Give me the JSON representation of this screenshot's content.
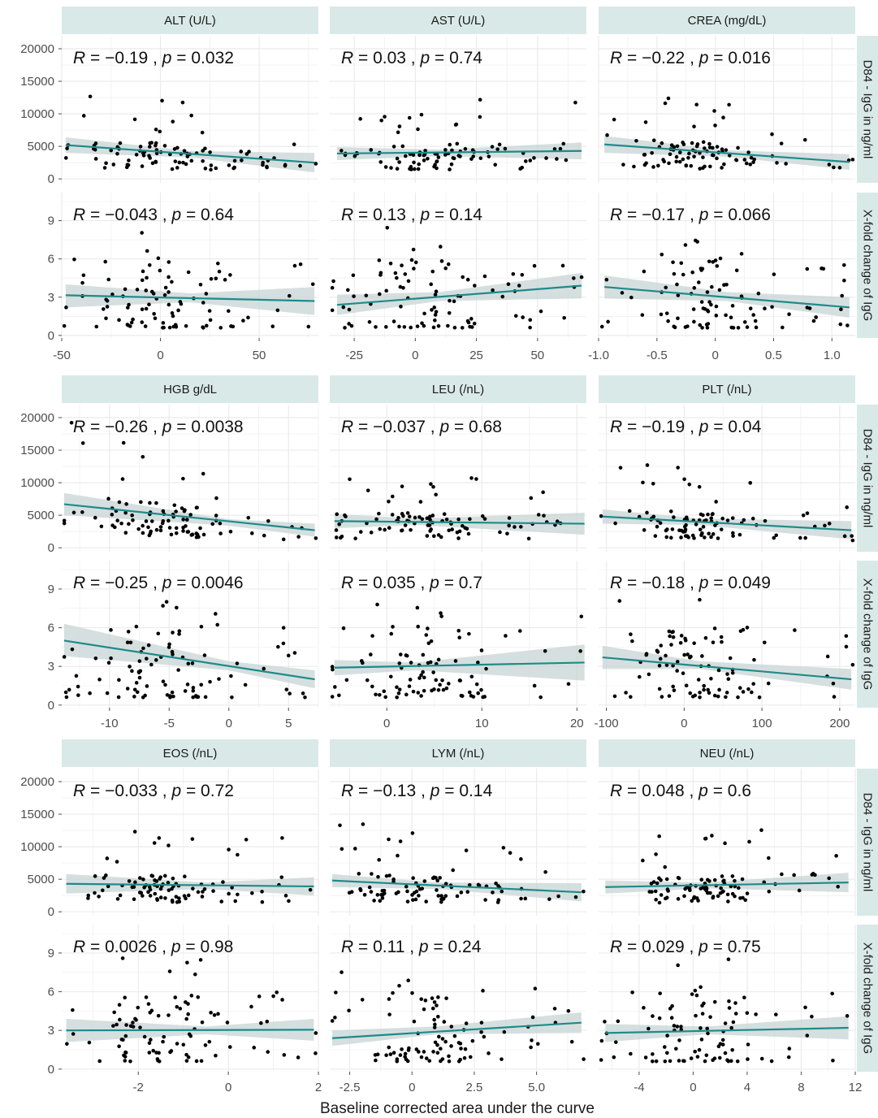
{
  "figure": {
    "x_axis_label": "Baseline corrected area under the curve",
    "row_strip_labels": [
      "D84 - IgG in ng/ml",
      "X-fold change of IgG"
    ],
    "colors": {
      "panel_bg": "#ffffff",
      "grid": "#ebebeb",
      "strip_bg": "#d9e9e8",
      "fit_line": "#1f8a8a",
      "confidence_band": "#c8d4d4",
      "point": "#000000"
    }
  },
  "chart_data": [
    {
      "type": "scatter",
      "title": "ALT (U/L)",
      "row": "D84 - IgG in ng/ml",
      "xlim": [
        -50,
        80
      ],
      "ylim": [
        -600,
        22000
      ],
      "x_ticks": [
        -50,
        0,
        50
      ],
      "y_ticks": [
        0,
        5000,
        10000,
        15000,
        20000
      ],
      "stat": {
        "R": "−0.19",
        "p": "0.032"
      },
      "fit": [
        [
          -48,
          5200
        ],
        [
          78,
          2500
        ]
      ],
      "band": [
        [
          -48,
          4000,
          6400
        ],
        [
          15,
          3300,
          4300
        ],
        [
          78,
          1000,
          4000
        ]
      ]
    },
    {
      "type": "scatter",
      "title": "AST (U/L)",
      "row": "D84 - IgG in ng/ml",
      "xlim": [
        -35,
        70
      ],
      "ylim": [
        -600,
        22000
      ],
      "x_ticks": [
        -25,
        0,
        25,
        50
      ],
      "y_ticks": [
        0,
        5000,
        10000,
        15000,
        20000
      ],
      "stat": {
        "R": "0.03",
        "p": "0.74"
      },
      "fit": [
        [
          -32,
          3900
        ],
        [
          68,
          4300
        ]
      ],
      "band": [
        [
          -32,
          2900,
          4900
        ],
        [
          10,
          3500,
          4500
        ],
        [
          68,
          3000,
          5600
        ]
      ]
    },
    {
      "type": "scatter",
      "title": "CREA (mg/dL)",
      "row": "D84 - IgG in ng/ml",
      "xlim": [
        -1.0,
        1.2
      ],
      "ylim": [
        -600,
        22000
      ],
      "x_ticks": [
        -1.0,
        -0.5,
        0.0,
        0.5,
        1.0
      ],
      "y_ticks": [
        0,
        5000,
        10000,
        15000,
        20000
      ],
      "stat": {
        "R": "−0.22",
        "p": "0.016"
      },
      "fit": [
        [
          -0.95,
          5300
        ],
        [
          1.15,
          2600
        ]
      ],
      "band": [
        [
          -0.95,
          4000,
          6600
        ],
        [
          0.1,
          3400,
          4400
        ],
        [
          1.15,
          1400,
          3800
        ]
      ]
    },
    {
      "type": "scatter",
      "title": "ALT (U/L)",
      "row": "X-fold change of IgG",
      "xlim": [
        -50,
        80
      ],
      "ylim": [
        -0.2,
        11.2
      ],
      "x_ticks": [
        -50,
        0,
        50
      ],
      "y_ticks": [
        0,
        3,
        6,
        9
      ],
      "x_tick_labels_shown": true,
      "stat": {
        "R": "−0.043",
        "p": "0.64"
      },
      "fit": [
        [
          -48,
          3.15
        ],
        [
          78,
          2.7
        ]
      ],
      "band": [
        [
          -48,
          2.2,
          4.0
        ],
        [
          15,
          2.6,
          3.3
        ],
        [
          78,
          1.6,
          3.8
        ]
      ]
    },
    {
      "type": "scatter",
      "title": "AST (U/L)",
      "row": "X-fold change of IgG",
      "xlim": [
        -35,
        70
      ],
      "ylim": [
        -0.2,
        11.2
      ],
      "x_ticks": [
        -25,
        0,
        25,
        50
      ],
      "y_ticks": [
        0,
        3,
        6,
        9
      ],
      "stat": {
        "R": "0.13",
        "p": "0.14"
      },
      "fit": [
        [
          -32,
          2.4
        ],
        [
          68,
          3.9
        ]
      ],
      "band": [
        [
          -32,
          1.6,
          3.2
        ],
        [
          10,
          2.7,
          3.4
        ],
        [
          68,
          2.9,
          4.9
        ]
      ]
    },
    {
      "type": "scatter",
      "title": "CREA (mg/dL)",
      "row": "X-fold change of IgG",
      "xlim": [
        -1.0,
        1.2
      ],
      "ylim": [
        -0.2,
        11.2
      ],
      "x_ticks": [
        -1.0,
        -0.5,
        0.0,
        0.5,
        1.0
      ],
      "y_ticks": [
        0,
        3,
        6,
        9
      ],
      "stat": {
        "R": "−0.17",
        "p": "0.066"
      },
      "fit": [
        [
          -0.95,
          3.8
        ],
        [
          1.15,
          2.2
        ]
      ],
      "band": [
        [
          -0.95,
          2.9,
          4.7
        ],
        [
          0.1,
          2.7,
          3.4
        ],
        [
          1.15,
          1.4,
          3.0
        ]
      ]
    },
    {
      "type": "scatter",
      "title": "HGB g/dL",
      "row": "D84 - IgG in ng/ml",
      "xlim": [
        -14,
        7.5
      ],
      "ylim": [
        -600,
        22000
      ],
      "x_ticks": [
        -10,
        -5,
        0,
        5
      ],
      "y_ticks": [
        0,
        5000,
        10000,
        15000,
        20000
      ],
      "stat": {
        "R": "−0.26",
        "p": "0.0038"
      },
      "fit": [
        [
          -13.8,
          6700
        ],
        [
          7.2,
          2700
        ]
      ],
      "band": [
        [
          -13.8,
          5000,
          8400
        ],
        [
          0,
          3400,
          4400
        ],
        [
          7.2,
          1700,
          3700
        ]
      ]
    },
    {
      "type": "scatter",
      "title": "LEU (/nL)",
      "row": "D84 - IgG in ng/ml",
      "xlim": [
        -6,
        21
      ],
      "ylim": [
        -600,
        22000
      ],
      "x_ticks": [
        0,
        10,
        20
      ],
      "y_ticks": [
        0,
        5000,
        10000,
        15000,
        20000
      ],
      "stat": {
        "R": "−0.037",
        "p": "0.68"
      },
      "fit": [
        [
          -5.5,
          4100
        ],
        [
          20.8,
          3700
        ]
      ],
      "band": [
        [
          -5.5,
          3000,
          5200
        ],
        [
          3,
          3500,
          4500
        ],
        [
          20.8,
          2000,
          5400
        ]
      ]
    },
    {
      "type": "scatter",
      "title": "PLT (/nL)",
      "row": "D84 - IgG in ng/ml",
      "xlim": [
        -110,
        220
      ],
      "ylim": [
        -600,
        22000
      ],
      "x_ticks": [
        -100,
        0,
        100,
        200
      ],
      "y_ticks": [
        0,
        5000,
        10000,
        15000,
        20000
      ],
      "stat": {
        "R": "−0.19",
        "p": "0.04"
      },
      "fit": [
        [
          -105,
          4800
        ],
        [
          215,
          2700
        ]
      ],
      "band": [
        [
          -105,
          3700,
          5900
        ],
        [
          20,
          3500,
          4500
        ],
        [
          215,
          1300,
          4100
        ]
      ]
    },
    {
      "type": "scatter",
      "title": "HGB g/dL",
      "row": "X-fold change of IgG",
      "xlim": [
        -14,
        7.5
      ],
      "ylim": [
        -0.2,
        11.2
      ],
      "x_ticks": [
        -10,
        -5,
        0,
        5
      ],
      "y_ticks": [
        0,
        3,
        6,
        9
      ],
      "stat": {
        "R": "−0.25",
        "p": "0.0046"
      },
      "fit": [
        [
          -13.8,
          5.0
        ],
        [
          7.2,
          2.0
        ]
      ],
      "band": [
        [
          -13.8,
          3.8,
          6.3
        ],
        [
          0,
          2.7,
          3.4
        ],
        [
          7.2,
          1.3,
          2.7
        ]
      ]
    },
    {
      "type": "scatter",
      "title": "LEU (/nL)",
      "row": "X-fold change of IgG",
      "xlim": [
        -6,
        21
      ],
      "ylim": [
        -0.2,
        11.2
      ],
      "x_ticks": [
        0,
        10,
        20
      ],
      "y_ticks": [
        0,
        3,
        6,
        9
      ],
      "stat": {
        "R": "0.035",
        "p": "0.7"
      },
      "fit": [
        [
          -5.5,
          2.9
        ],
        [
          20.8,
          3.3
        ]
      ],
      "band": [
        [
          -5.5,
          2.3,
          3.5
        ],
        [
          3,
          2.7,
          3.3
        ],
        [
          20.8,
          1.9,
          4.7
        ]
      ]
    },
    {
      "type": "scatter",
      "title": "PLT (/nL)",
      "row": "X-fold change of IgG",
      "xlim": [
        -110,
        220
      ],
      "ylim": [
        -0.2,
        11.2
      ],
      "x_ticks": [
        -100,
        0,
        100,
        200
      ],
      "y_ticks": [
        0,
        3,
        6,
        9
      ],
      "stat": {
        "R": "−0.18",
        "p": "0.049"
      },
      "fit": [
        [
          -105,
          3.7
        ],
        [
          215,
          2.0
        ]
      ],
      "band": [
        [
          -105,
          2.8,
          4.6
        ],
        [
          20,
          2.8,
          3.4
        ],
        [
          215,
          1.2,
          2.8
        ]
      ]
    },
    {
      "type": "scatter",
      "title": "EOS (/nL)",
      "row": "D84 - IgG in ng/ml",
      "xlim": [
        -3.7,
        2.0
      ],
      "ylim": [
        -600,
        22000
      ],
      "x_ticks": [
        -2,
        0,
        2
      ],
      "y_ticks": [
        0,
        5000,
        10000,
        15000,
        20000
      ],
      "stat": {
        "R": "−0.033",
        "p": "0.72"
      },
      "fit": [
        [
          -3.6,
          4300
        ],
        [
          1.9,
          3900
        ]
      ],
      "band": [
        [
          -3.6,
          2800,
          5800
        ],
        [
          -0.5,
          3500,
          4500
        ],
        [
          1.9,
          2500,
          5300
        ]
      ]
    },
    {
      "type": "scatter",
      "title": "LYM (/nL)",
      "row": "D84 - IgG in ng/ml",
      "xlim": [
        -3.3,
        7.0
      ],
      "ylim": [
        -600,
        22000
      ],
      "x_ticks": [
        -2.5,
        0.0,
        2.5,
        5.0
      ],
      "y_ticks": [
        0,
        5000,
        10000,
        15000,
        20000
      ],
      "stat": {
        "R": "−0.13",
        "p": "0.14"
      },
      "fit": [
        [
          -3.2,
          4800
        ],
        [
          6.8,
          3000
        ]
      ],
      "band": [
        [
          -3.2,
          3800,
          5800
        ],
        [
          1.0,
          3500,
          4500
        ],
        [
          6.8,
          1600,
          4400
        ]
      ]
    },
    {
      "type": "scatter",
      "title": "NEU (/nL)",
      "row": "D84 - IgG in ng/ml",
      "xlim": [
        -7,
        12
      ],
      "ylim": [
        -600,
        22000
      ],
      "x_ticks": [
        -4,
        0,
        4,
        8,
        12
      ],
      "y_ticks": [
        0,
        5000,
        10000,
        15000,
        20000
      ],
      "stat": {
        "R": "0.048",
        "p": "0.6"
      },
      "fit": [
        [
          -6.5,
          3800
        ],
        [
          11.5,
          4500
        ]
      ],
      "band": [
        [
          -6.5,
          2800,
          4800
        ],
        [
          1.0,
          3600,
          4500
        ],
        [
          11.5,
          3000,
          6000
        ]
      ]
    },
    {
      "type": "scatter",
      "title": "EOS (/nL)",
      "row": "X-fold change of IgG",
      "xlim": [
        -3.7,
        2.0
      ],
      "ylim": [
        -0.2,
        11.2
      ],
      "x_ticks": [
        -2,
        0,
        2
      ],
      "y_ticks": [
        0,
        3,
        6,
        9
      ],
      "stat": {
        "R": "0.0026",
        "p": "0.98"
      },
      "fit": [
        [
          -3.6,
          3.0
        ],
        [
          1.9,
          3.05
        ]
      ],
      "band": [
        [
          -3.6,
          2.1,
          3.9
        ],
        [
          -0.5,
          2.7,
          3.3
        ],
        [
          1.9,
          2.2,
          3.9
        ]
      ]
    },
    {
      "type": "scatter",
      "title": "LYM (/nL)",
      "row": "X-fold change of IgG",
      "xlim": [
        -3.3,
        7.0
      ],
      "ylim": [
        -0.2,
        11.2
      ],
      "x_ticks": [
        -2.5,
        0.0,
        2.5,
        5.0
      ],
      "y_ticks": [
        0,
        3,
        6,
        9
      ],
      "stat": {
        "R": "0.11",
        "p": "0.24"
      },
      "fit": [
        [
          -3.2,
          2.4
        ],
        [
          6.8,
          3.6
        ]
      ],
      "band": [
        [
          -3.2,
          1.8,
          3.0
        ],
        [
          1.0,
          2.7,
          3.3
        ],
        [
          6.8,
          2.8,
          4.4
        ]
      ]
    },
    {
      "type": "scatter",
      "title": "NEU (/nL)",
      "row": "X-fold change of IgG",
      "xlim": [
        -7,
        12
      ],
      "ylim": [
        -0.2,
        11.2
      ],
      "x_ticks": [
        -4,
        0,
        4,
        8,
        12
      ],
      "y_ticks": [
        0,
        3,
        6,
        9
      ],
      "stat": {
        "R": "0.029",
        "p": "0.75"
      },
      "fit": [
        [
          -6.5,
          2.8
        ],
        [
          11.5,
          3.2
        ]
      ],
      "band": [
        [
          -6.5,
          2.1,
          3.5
        ],
        [
          1.0,
          2.7,
          3.3
        ],
        [
          11.5,
          2.3,
          4.1
        ]
      ]
    }
  ]
}
